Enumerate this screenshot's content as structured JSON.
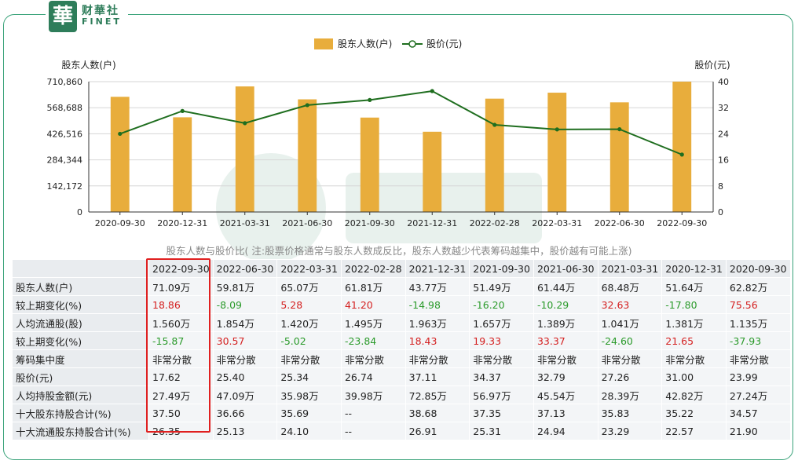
{
  "brand": {
    "mark": "華",
    "name_cn": "财華社",
    "name_en": "FINET"
  },
  "chart_data": {
    "type": "bar+line",
    "legend": [
      {
        "name": "股东人数(户)",
        "kind": "bar",
        "color": "#e8ad3c"
      },
      {
        "name": "股价(元)",
        "kind": "line",
        "color": "#1f6e1f"
      }
    ],
    "legend_position": "top",
    "left_axis": {
      "label": "股东人数(户)",
      "ticks": [
        "0",
        "142,172",
        "284,344",
        "426,516",
        "568,688",
        "710,860"
      ],
      "range": [
        0,
        710860
      ]
    },
    "right_axis": {
      "label": "股价(元)",
      "ticks": [
        "0",
        "8",
        "16",
        "24",
        "32",
        "40"
      ],
      "range": [
        0,
        40
      ]
    },
    "categories": [
      "2020-09-30",
      "2020-12-31",
      "2021-03-31",
      "2021-06-30",
      "2021-09-30",
      "2021-12-31",
      "2022-02-28",
      "2022-03-31",
      "2022-06-30",
      "2022-09-30"
    ],
    "series": [
      {
        "name": "股东人数(户)",
        "type": "bar",
        "values": [
          628200,
          516400,
          684800,
          614400,
          514900,
          437700,
          618100,
          650700,
          598100,
          710900
        ]
      },
      {
        "name": "股价(元)",
        "type": "line",
        "values": [
          23.99,
          31.0,
          27.26,
          32.79,
          34.37,
          37.11,
          26.74,
          25.34,
          25.4,
          17.62
        ]
      }
    ],
    "grid": "horizontal"
  },
  "caption": "股东人数与股价比( 注:股票价格通常与股东人数成反比，股东人数越少代表筹码越集中，股价越有可能上涨)",
  "table": {
    "columns": [
      "2022-09-30",
      "2022-06-30",
      "2022-03-31",
      "2022-02-28",
      "2021-12-31",
      "2021-09-30",
      "2021-06-30",
      "2021-03-31",
      "2020-12-31",
      "2020-09-30"
    ],
    "rows": [
      {
        "label": "股东人数(户)",
        "values": [
          "71.09万",
          "59.81万",
          "65.07万",
          "61.81万",
          "43.77万",
          "51.49万",
          "61.44万",
          "68.48万",
          "51.64万",
          "62.82万"
        ]
      },
      {
        "label": "较上期变化(%)",
        "signed": true,
        "values": [
          "18.86",
          "-8.09",
          "5.28",
          "41.20",
          "-14.98",
          "-16.20",
          "-10.29",
          "32.63",
          "-17.80",
          "75.56"
        ]
      },
      {
        "label": "人均流通股(股)",
        "values": [
          "1.560万",
          "1.854万",
          "1.420万",
          "1.495万",
          "1.963万",
          "1.657万",
          "1.389万",
          "1.041万",
          "1.381万",
          "1.135万"
        ]
      },
      {
        "label": "较上期变化(%)",
        "signed": true,
        "values": [
          "-15.87",
          "30.57",
          "-5.02",
          "-23.84",
          "18.43",
          "19.33",
          "33.37",
          "-24.60",
          "21.65",
          "-37.93"
        ]
      },
      {
        "label": "筹码集中度",
        "values": [
          "非常分散",
          "非常分散",
          "非常分散",
          "非常分散",
          "非常分散",
          "非常分散",
          "非常分散",
          "非常分散",
          "非常分散",
          "非常分散"
        ]
      },
      {
        "label": "股价(元)",
        "values": [
          "17.62",
          "25.40",
          "25.34",
          "26.74",
          "37.11",
          "34.37",
          "32.79",
          "27.26",
          "31.00",
          "23.99"
        ]
      },
      {
        "label": "人均持股金额(元)",
        "values": [
          "27.49万",
          "47.09万",
          "35.98万",
          "39.98万",
          "72.85万",
          "56.97万",
          "45.54万",
          "28.39万",
          "42.82万",
          "27.24万"
        ]
      },
      {
        "label": "十大股东持股合计(%)",
        "values": [
          "37.50",
          "36.66",
          "35.69",
          "--",
          "38.68",
          "37.35",
          "37.13",
          "35.83",
          "35.22",
          "34.57"
        ]
      },
      {
        "label": "十大流通股东持股合计(%)",
        "values": [
          "26.35",
          "25.13",
          "24.10",
          "--",
          "26.91",
          "25.31",
          "24.94",
          "23.29",
          "22.57",
          "21.90"
        ]
      }
    ]
  }
}
